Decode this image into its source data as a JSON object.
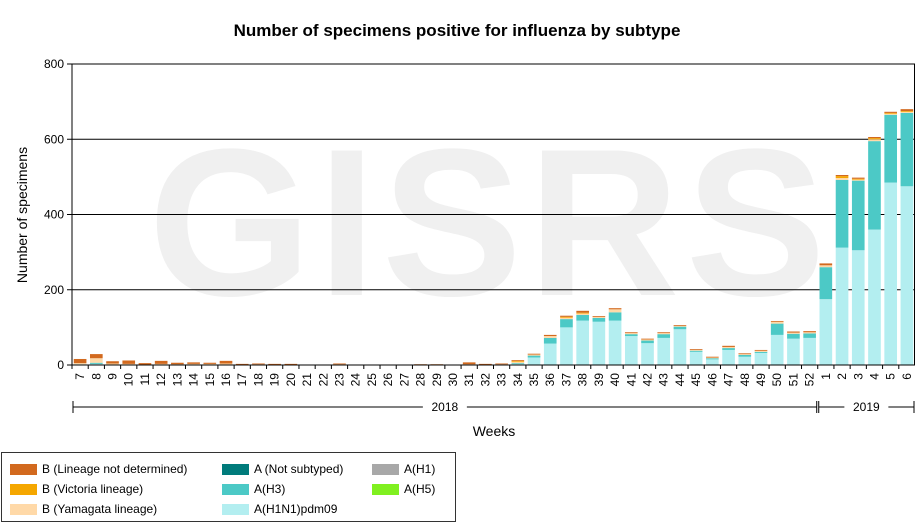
{
  "chart_data": {
    "type": "bar",
    "stacked": true,
    "title": "Number of specimens positive for influenza by subtype",
    "xlabel": "Weeks",
    "ylabel": "Number of specimens",
    "ylim": [
      0,
      800
    ],
    "yticks": [
      0,
      200,
      400,
      600,
      800
    ],
    "grid": true,
    "watermark": "GISRS",
    "categories": [
      "7",
      "8",
      "9",
      "10",
      "11",
      "12",
      "13",
      "14",
      "15",
      "16",
      "17",
      "18",
      "19",
      "20",
      "21",
      "22",
      "23",
      "24",
      "25",
      "26",
      "27",
      "28",
      "29",
      "30",
      "31",
      "32",
      "33",
      "34",
      "35",
      "36",
      "37",
      "38",
      "39",
      "40",
      "41",
      "42",
      "43",
      "44",
      "45",
      "46",
      "47",
      "48",
      "49",
      "50",
      "51",
      "52",
      "1",
      "2",
      "3",
      "4",
      "5",
      "6"
    ],
    "year_groups": [
      {
        "label": "2018",
        "from": 0,
        "to": 45
      },
      {
        "label": "2019",
        "from": 46,
        "to": 51
      }
    ],
    "series": [
      {
        "name": "A(H1N1)pdm09",
        "color": "#b3eef0",
        "values": [
          2,
          3,
          1,
          1,
          0,
          1,
          1,
          1,
          1,
          1,
          0,
          1,
          1,
          0,
          0,
          0,
          1,
          0,
          0,
          0,
          0,
          1,
          1,
          0,
          1,
          1,
          1,
          3,
          20,
          57,
          100,
          118,
          115,
          118,
          77,
          58,
          72,
          95,
          35,
          15,
          40,
          22,
          32,
          80,
          70,
          72,
          175,
          312,
          305,
          360,
          485,
          475
        ]
      },
      {
        "name": "A(H3)",
        "color": "#4cc9c6",
        "values": [
          0,
          3,
          0,
          0,
          0,
          0,
          0,
          0,
          0,
          0,
          0,
          0,
          0,
          0,
          0,
          0,
          0,
          0,
          0,
          0,
          0,
          0,
          0,
          0,
          0,
          0,
          0,
          2,
          5,
          15,
          22,
          15,
          10,
          22,
          5,
          7,
          10,
          7,
          3,
          3,
          5,
          5,
          3,
          30,
          13,
          12,
          85,
          180,
          185,
          235,
          180,
          195
        ]
      },
      {
        "name": "A(H1)",
        "color": "#a8a8a8",
        "values": [
          0,
          0,
          0,
          0,
          0,
          0,
          0,
          0,
          0,
          0,
          0,
          0,
          0,
          0,
          0,
          0,
          0,
          0,
          0,
          0,
          0,
          0,
          0,
          0,
          0,
          0,
          0,
          0,
          0,
          0,
          0,
          0,
          0,
          0,
          0,
          0,
          0,
          0,
          0,
          0,
          0,
          0,
          0,
          0,
          0,
          0,
          0,
          0,
          0,
          0,
          0,
          0
        ]
      },
      {
        "name": "A(H5)",
        "color": "#80f020",
        "values": [
          0,
          0,
          0,
          0,
          0,
          0,
          0,
          0,
          0,
          0,
          0,
          0,
          0,
          0,
          0,
          0,
          0,
          0,
          0,
          0,
          0,
          0,
          0,
          0,
          0,
          0,
          0,
          0,
          0,
          0,
          0,
          0,
          0,
          0,
          0,
          0,
          0,
          0,
          0,
          0,
          0,
          0,
          0,
          0,
          0,
          0,
          0,
          0,
          0,
          0,
          0,
          0
        ]
      },
      {
        "name": "A (Not subtyped)",
        "color": "#007b7b",
        "values": [
          0,
          0,
          0,
          0,
          0,
          0,
          0,
          0,
          0,
          0,
          0,
          0,
          0,
          0,
          0,
          0,
          0,
          0,
          0,
          0,
          0,
          0,
          0,
          0,
          0,
          0,
          0,
          0,
          0,
          0,
          0,
          0,
          0,
          0,
          0,
          0,
          0,
          0,
          0,
          0,
          0,
          0,
          0,
          0,
          0,
          0,
          0,
          0,
          0,
          0,
          0,
          0
        ]
      },
      {
        "name": "B (Yamagata lineage)",
        "color": "#ffd9a8",
        "values": [
          3,
          12,
          3,
          2,
          1,
          2,
          1,
          2,
          2,
          3,
          1,
          1,
          1,
          1,
          0,
          0,
          1,
          0,
          0,
          0,
          0,
          0,
          0,
          0,
          1,
          0,
          1,
          5,
          3,
          5,
          5,
          5,
          3,
          8,
          3,
          3,
          3,
          2,
          3,
          2,
          3,
          2,
          3,
          5,
          3,
          3,
          5,
          5,
          3,
          5,
          3,
          3
        ]
      },
      {
        "name": "B (Victoria lineage)",
        "color": "#f5a700",
        "values": [
          0,
          0,
          0,
          0,
          0,
          0,
          0,
          0,
          0,
          0,
          0,
          0,
          0,
          0,
          0,
          0,
          0,
          0,
          0,
          0,
          0,
          0,
          0,
          0,
          0,
          0,
          0,
          1,
          0,
          0,
          1,
          1,
          0,
          0,
          0,
          0,
          0,
          0,
          0,
          0,
          0,
          0,
          0,
          0,
          0,
          0,
          0,
          5,
          2,
          3,
          2,
          2
        ]
      },
      {
        "name": "B (Lineage not determined)",
        "color": "#d2691e",
        "values": [
          11,
          11,
          6,
          9,
          4,
          8,
          4,
          4,
          3,
          7,
          2,
          2,
          1,
          2,
          1,
          1,
          2,
          1,
          1,
          1,
          1,
          1,
          1,
          1,
          5,
          2,
          2,
          2,
          2,
          3,
          3,
          5,
          2,
          3,
          2,
          2,
          2,
          2,
          1,
          2,
          3,
          2,
          2,
          2,
          3,
          3,
          5,
          3,
          3,
          3,
          3,
          5
        ]
      }
    ]
  },
  "legend": {
    "items": [
      {
        "label": "B (Lineage not determined)",
        "color": "#d2691e"
      },
      {
        "label": "B (Victoria lineage)",
        "color": "#f5a700"
      },
      {
        "label": "B (Yamagata lineage)",
        "color": "#ffd9a8"
      },
      {
        "label": "A (Not subtyped)",
        "color": "#007b7b"
      },
      {
        "label": "A(H3)",
        "color": "#4cc9c6"
      },
      {
        "label": "A(H1N1)pdm09",
        "color": "#b3eef0"
      },
      {
        "label": "A(H1)",
        "color": "#a8a8a8"
      },
      {
        "label": "A(H5)",
        "color": "#80f020"
      }
    ]
  }
}
